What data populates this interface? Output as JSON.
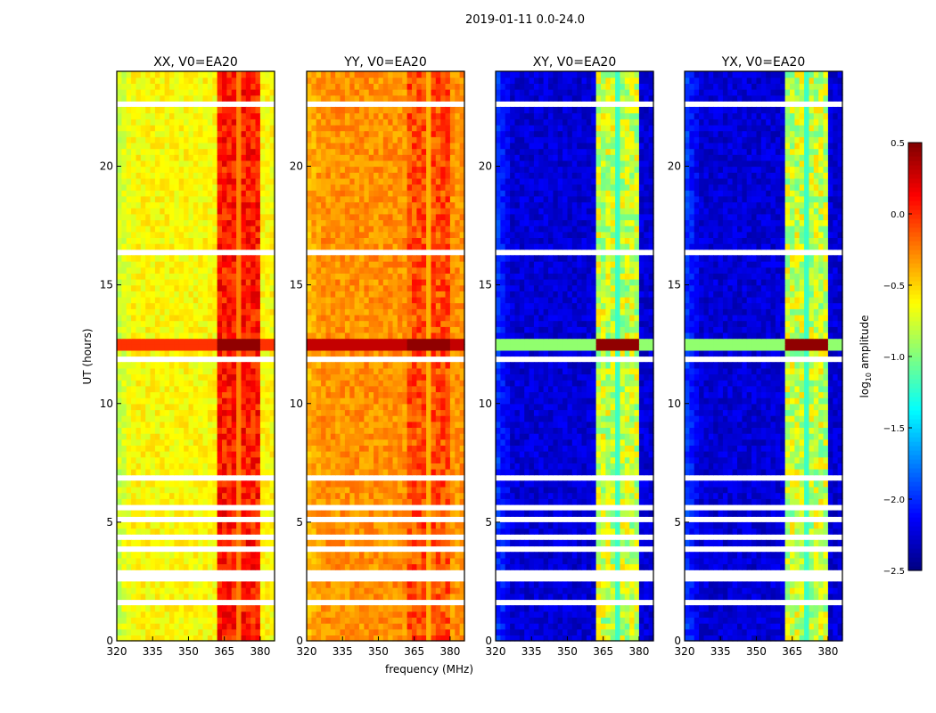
{
  "chart_data": {
    "type": "heatmap",
    "title": "2019-01-11 0.0-24.0",
    "xlabel": "frequency (MHz)",
    "ylabel": "UT (hours)",
    "xlim": [
      320,
      386
    ],
    "ylim": [
      0,
      24
    ],
    "xticks": [
      "320",
      "335",
      "350",
      "365",
      "380"
    ],
    "yticks": [
      "0",
      "5",
      "10",
      "15",
      "20"
    ],
    "colorbar": {
      "label": "log10 amplitude",
      "label_main": "log",
      "label_sub": "10",
      "label_rest": " amplitude",
      "range": [
        -2.5,
        0.5
      ],
      "ticks": [
        "0.5",
        "0.0",
        "−0.5",
        "−1.0",
        "−1.5",
        "−2.0",
        "−2.5"
      ],
      "colormap": "jet"
    },
    "rfi_band_mhz": [
      362,
      380
    ],
    "rfi_stripe_gaps_mhz": [
      366,
      371,
      376
    ],
    "strong_rfi_hours": [
      12.1,
      12.6
    ],
    "flagged_hours": [
      [
        22.5,
        22.8
      ],
      [
        21.7,
        21.8
      ],
      [
        16.2,
        16.5
      ],
      [
        14.45,
        14.55
      ],
      [
        11.65,
        11.95
      ],
      [
        10.95,
        11.05
      ],
      [
        7.4,
        7.6
      ],
      [
        7.0,
        7.1
      ],
      [
        6.75,
        6.9
      ],
      [
        6.2,
        6.35
      ],
      [
        5.55,
        5.7
      ],
      [
        5.0,
        5.2
      ],
      [
        4.3,
        4.5
      ],
      [
        3.65,
        4.05
      ],
      [
        2.6,
        3.0
      ],
      [
        2.0,
        2.1
      ],
      [
        1.6,
        1.7
      ],
      [
        1.0,
        1.1
      ]
    ],
    "panels": [
      {
        "title": "XX, V0=EA20",
        "baseline": -0.62,
        "edge_low": -0.85,
        "band": [
          -0.15,
          0.25
        ],
        "strong": 0.45
      },
      {
        "title": "YY, V0=EA20",
        "baseline": -0.3,
        "edge_low": -0.45,
        "band": [
          -0.3,
          0.1
        ],
        "strong": 0.45
      },
      {
        "title": "XY, V0=EA20",
        "baseline": -2.25,
        "edge_low": -1.85,
        "band": [
          -1.1,
          -0.5
        ],
        "strong": 0.45
      },
      {
        "title": "YX, V0=EA20",
        "baseline": -2.25,
        "edge_low": -1.85,
        "band": [
          -1.1,
          -0.5
        ],
        "strong": 0.45
      }
    ]
  }
}
